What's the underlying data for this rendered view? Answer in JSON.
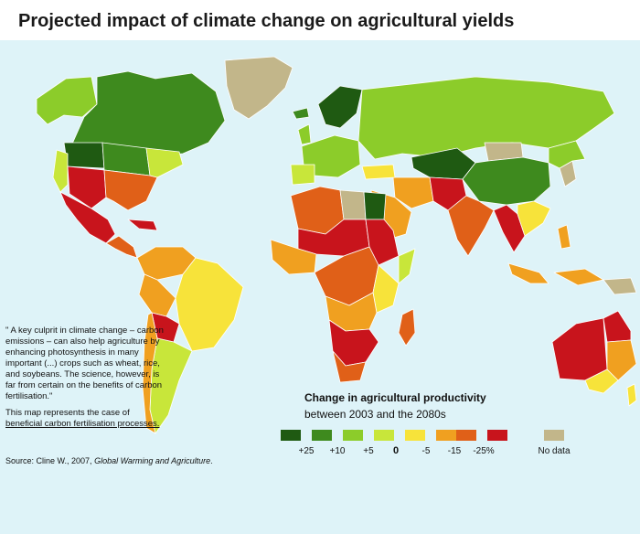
{
  "title": "Projected impact of climate change on agricultural yields",
  "quote": {
    "text": "\" A key culprit in climate change – carbon emissions – can also help agriculture by enhancing photosynthesis in many important (...) crops such as wheat, rice, and soybeans. The science, however, is far from certain on the benefits of carbon fertilisation.\"",
    "note_prefix": "This map represents the case of",
    "note_underlined": "beneficial carbon fertilisation processes."
  },
  "source": {
    "prefix": "Source: Cline W., 2007, ",
    "work": "Global Warming and Agriculture",
    "suffix": "."
  },
  "legend": {
    "title": "Change in agricultural productivity",
    "subtitle": "between 2003 and the 2080s",
    "categories": [
      {
        "label": "+25",
        "color": "#1f5a12"
      },
      {
        "label": "+10",
        "color": "#3e8a1e"
      },
      {
        "label": "+5",
        "color": "#8ccc2a"
      },
      {
        "label": "0",
        "color": "#c8e63a"
      },
      {
        "label": "-5",
        "color": "#f7e33a"
      },
      {
        "label": "-15",
        "color": "#f0a020"
      },
      {
        "label": "-25%",
        "color": "#e06018"
      },
      {
        "label": "",
        "color": "#c8141c"
      }
    ],
    "no_data": {
      "label": "No data",
      "color": "#c2b68a"
    }
  },
  "colors": {
    "ocean": "#def3f8",
    "plus25": "#1f5a12",
    "plus10": "#3e8a1e",
    "plus5": "#8ccc2a",
    "zero": "#c8e63a",
    "minus5": "#f7e33a",
    "minus15": "#f0a020",
    "minus25": "#e06018",
    "worst": "#c8141c",
    "nodata": "#c2b68a"
  }
}
